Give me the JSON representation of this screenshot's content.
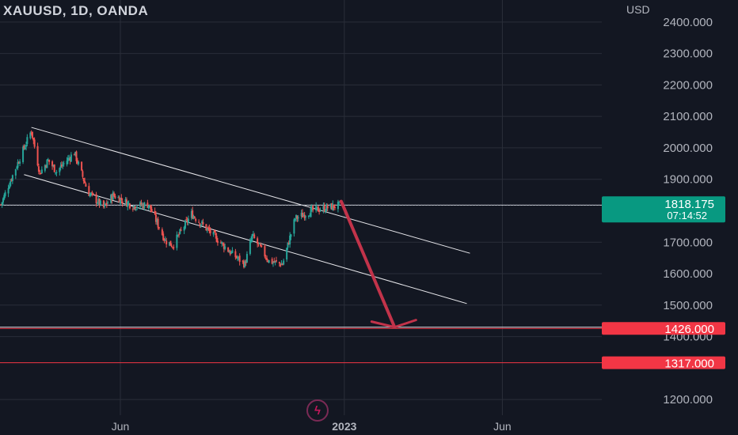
{
  "header": {
    "title": "XAUUSD, 1D, OANDA"
  },
  "colors": {
    "background": "#131722",
    "grid": "#2a2e39",
    "axis_text": "#b2b5be",
    "up": "#26a69a",
    "down": "#ef5350",
    "arrow": "#c2334a",
    "last_price_badge": "#089981",
    "level_badge": "#f23645"
  },
  "chart_data": {
    "type": "candlestick",
    "symbol": "XAUUSD",
    "interval": "1D",
    "source": "OANDA",
    "y_axis": {
      "unit": "USD",
      "range": [
        1150,
        2470
      ],
      "ticks": [
        "2400.000",
        "2300.000",
        "2200.000",
        "2100.000",
        "2000.000",
        "1900.000",
        "1700.000",
        "1600.000",
        "1500.000",
        "1400.000",
        "1200.000"
      ],
      "tick_values": [
        2400,
        2300,
        2200,
        2100,
        2000,
        1900,
        1700,
        1600,
        1500,
        1400,
        1200
      ]
    },
    "x_axis": {
      "ticks": [
        {
          "label": "Jun",
          "date": "2022-06-01"
        },
        {
          "label": "2023",
          "date": "2023-01-01"
        },
        {
          "label": "Jun",
          "date": "2023-06-01"
        }
      ],
      "visible_range": [
        "2022-02-06",
        "2023-09-04"
      ]
    },
    "grid": true,
    "price_path": [
      {
        "date": "2022-02-07",
        "close": 1820
      },
      {
        "date": "2022-02-14",
        "close": 1880
      },
      {
        "date": "2022-02-24",
        "close": 1960
      },
      {
        "date": "2022-03-08",
        "close": 2055
      },
      {
        "date": "2022-03-16",
        "close": 1920
      },
      {
        "date": "2022-03-24",
        "close": 1960
      },
      {
        "date": "2022-04-01",
        "close": 1925
      },
      {
        "date": "2022-04-18",
        "close": 1985
      },
      {
        "date": "2022-05-01",
        "close": 1860
      },
      {
        "date": "2022-05-16",
        "close": 1810
      },
      {
        "date": "2022-05-25",
        "close": 1850
      },
      {
        "date": "2022-06-13",
        "close": 1815
      },
      {
        "date": "2022-06-28",
        "close": 1820
      },
      {
        "date": "2022-07-14",
        "close": 1705
      },
      {
        "date": "2022-07-21",
        "close": 1690
      },
      {
        "date": "2022-08-08",
        "close": 1790
      },
      {
        "date": "2022-08-31",
        "close": 1715
      },
      {
        "date": "2022-09-15",
        "close": 1665
      },
      {
        "date": "2022-09-28",
        "close": 1630
      },
      {
        "date": "2022-10-05",
        "close": 1720
      },
      {
        "date": "2022-10-21",
        "close": 1640
      },
      {
        "date": "2022-11-03",
        "close": 1630
      },
      {
        "date": "2022-11-15",
        "close": 1775
      },
      {
        "date": "2022-12-01",
        "close": 1800
      },
      {
        "date": "2022-12-28",
        "close": 1818
      }
    ],
    "last_price": {
      "value": 1818.175,
      "label": "1818.175",
      "countdown": "07:14:52"
    },
    "levels": [
      {
        "value": 1426,
        "label": "1426.000"
      },
      {
        "value": 1317,
        "label": "1317.000"
      }
    ],
    "drawings": {
      "upper_trendline": [
        {
          "date": "2022-03-08",
          "price": 2065
        },
        {
          "date": "2023-05-01",
          "price": 1665
        }
      ],
      "lower_trendline": [
        {
          "date": "2022-03-01",
          "price": 1915
        },
        {
          "date": "2023-04-28",
          "price": 1505
        }
      ],
      "horizontal_line": {
        "price": 1818
      },
      "support_line": {
        "price": 1430
      },
      "arrow": [
        {
          "date": "2022-12-29",
          "price": 1830
        },
        {
          "date": "2023-02-18",
          "price": 1430
        }
      ]
    }
  }
}
